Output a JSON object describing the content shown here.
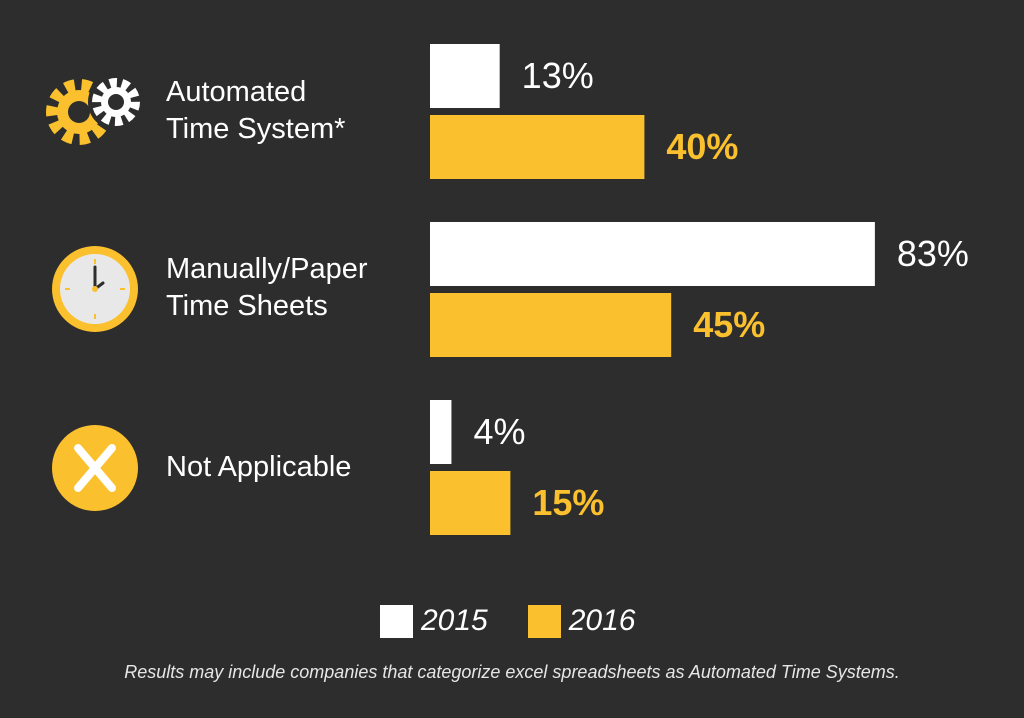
{
  "chart_data": {
    "type": "bar",
    "orientation": "horizontal",
    "categories": [
      "Automated\nTime System*",
      "Manually/Paper\nTime Sheets",
      "Not Applicable"
    ],
    "category_icons": [
      "gears-icon",
      "clock-icon",
      "x-circle-icon"
    ],
    "series": [
      {
        "name": "2015",
        "values": [
          13,
          83,
          4
        ],
        "labels": [
          "13%",
          "83%",
          "4%"
        ],
        "color": "#ffffff"
      },
      {
        "name": "2016",
        "values": [
          40,
          45,
          15
        ],
        "labels": [
          "40%",
          "45%",
          "15%"
        ],
        "color": "#fbc02d"
      }
    ],
    "xlim": [
      0,
      100
    ],
    "grid": false,
    "legend_position": "bottom"
  },
  "legend": {
    "label_2015": "2015",
    "label_2016": "2016"
  },
  "footnote": "Results may include companies that categorize excel spreadsheets as Automated Time Systems.",
  "colors": {
    "background": "#2d2d2d",
    "accent": "#fbc02d",
    "white": "#ffffff"
  }
}
